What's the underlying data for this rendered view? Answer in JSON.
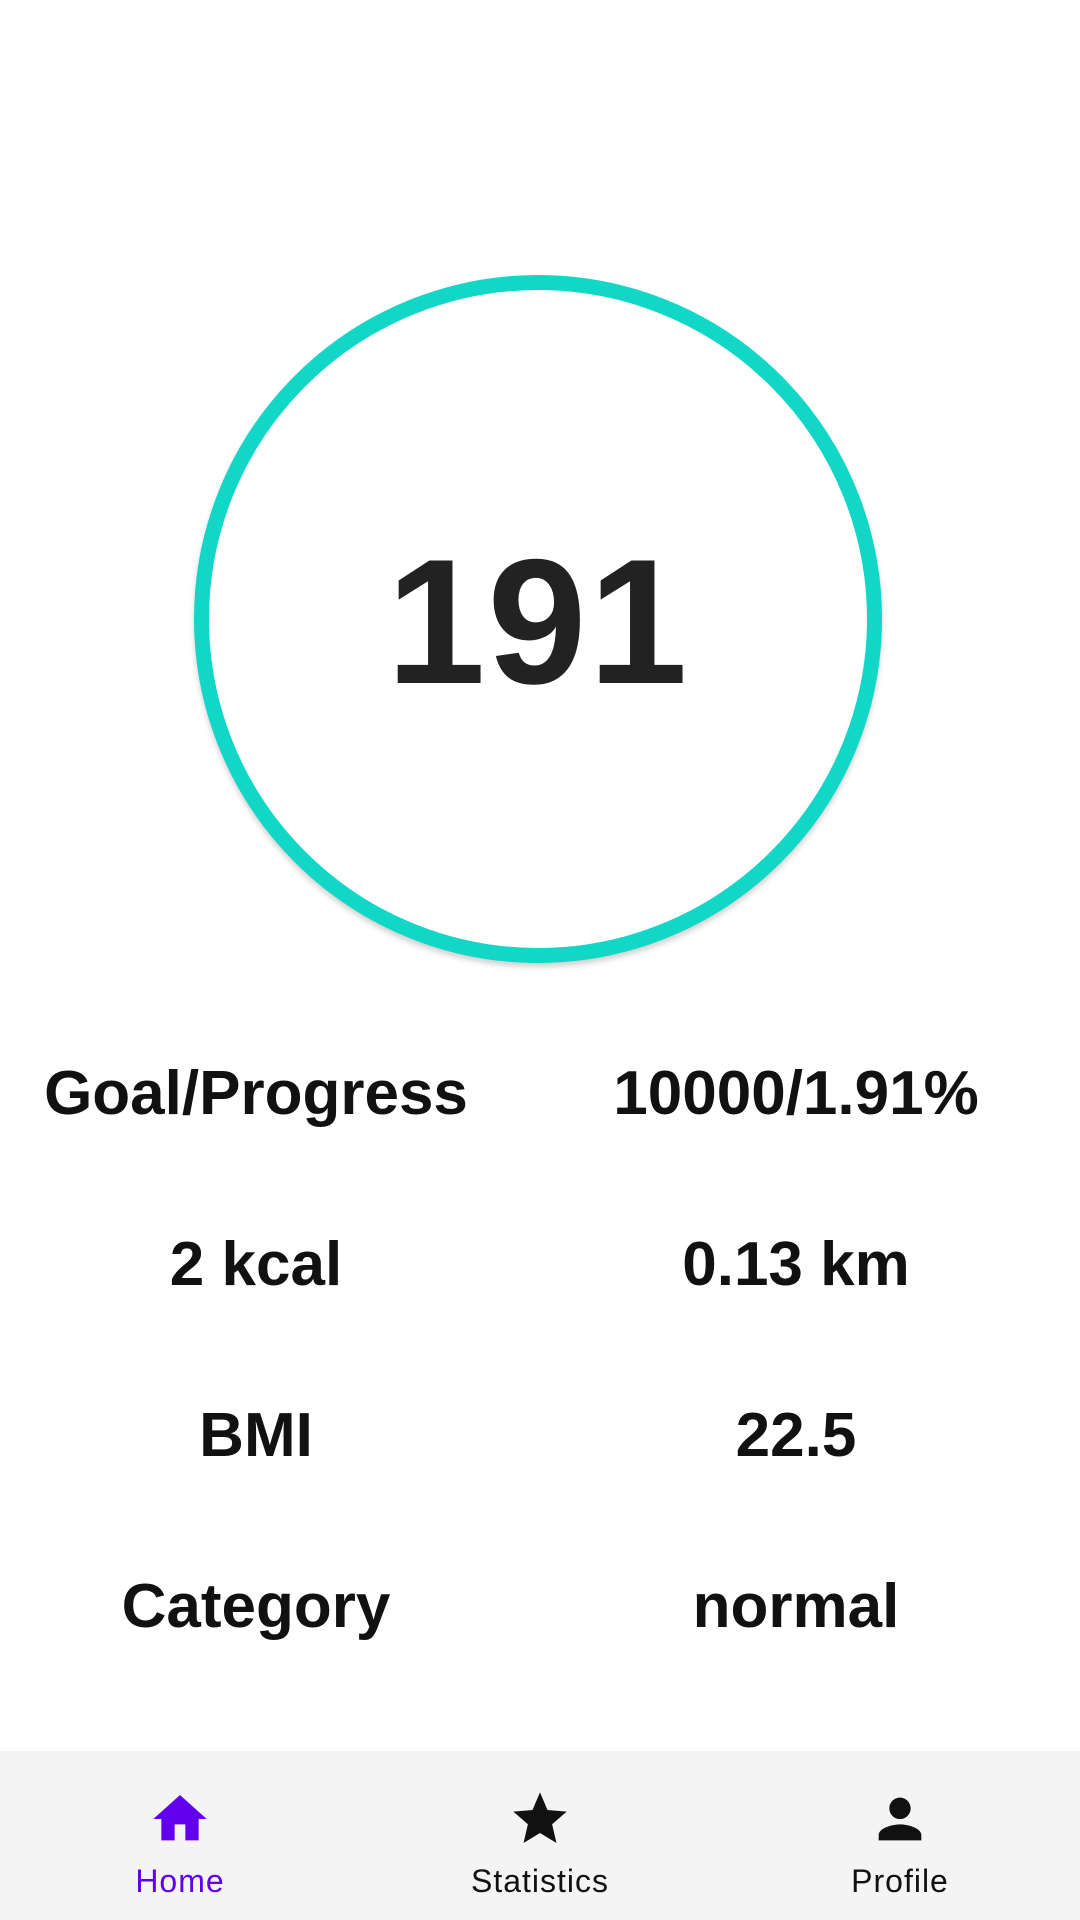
{
  "steps": {
    "count": "191",
    "ring_color": "#12D6C6"
  },
  "stats": [
    {
      "label": "Goal/Progress",
      "value": "10000/1.91%"
    },
    {
      "label": "2 kcal",
      "value": "0.13 km"
    },
    {
      "label": "BMI",
      "value": "22.5"
    },
    {
      "label": "Category",
      "value": "normal"
    }
  ],
  "nav": {
    "active_color": "#6200EE",
    "items": [
      {
        "label": "Home",
        "icon": "home-icon",
        "active": true
      },
      {
        "label": "Statistics",
        "icon": "star-icon",
        "active": false
      },
      {
        "label": "Profile",
        "icon": "person-icon",
        "active": false
      }
    ]
  }
}
